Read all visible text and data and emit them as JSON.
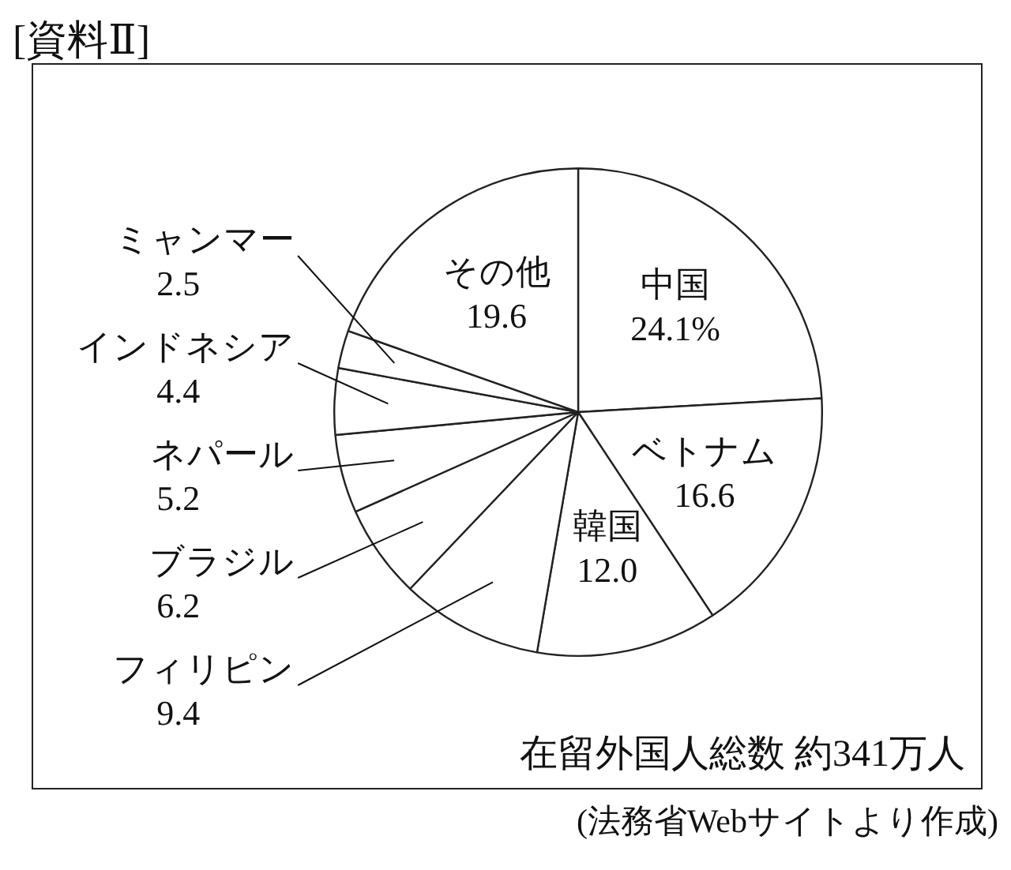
{
  "chart_data": {
    "type": "pie",
    "title": "[資料Ⅱ]",
    "categories": [
      "中国",
      "ベトナム",
      "韓国",
      "フィリピン",
      "ブラジル",
      "ネパール",
      "インドネシア",
      "ミャンマー",
      "その他"
    ],
    "values": [
      24.1,
      16.6,
      12.0,
      9.4,
      6.2,
      5.2,
      4.4,
      2.5,
      19.6
    ],
    "colors": [
      "#ffffff",
      "#ffffff",
      "#ffffff",
      "#ffffff",
      "#ffffff",
      "#ffffff",
      "#ffffff",
      "#ffffff",
      "#ffffff"
    ],
    "value_labels": [
      "24.1%",
      "16.6",
      "12.0",
      "9.4",
      "6.2",
      "5.2",
      "4.4",
      "2.5",
      "19.6"
    ],
    "annotations": [
      "在留外国人総数 約341万人",
      "(法務省Webサイトより作成)"
    ]
  }
}
